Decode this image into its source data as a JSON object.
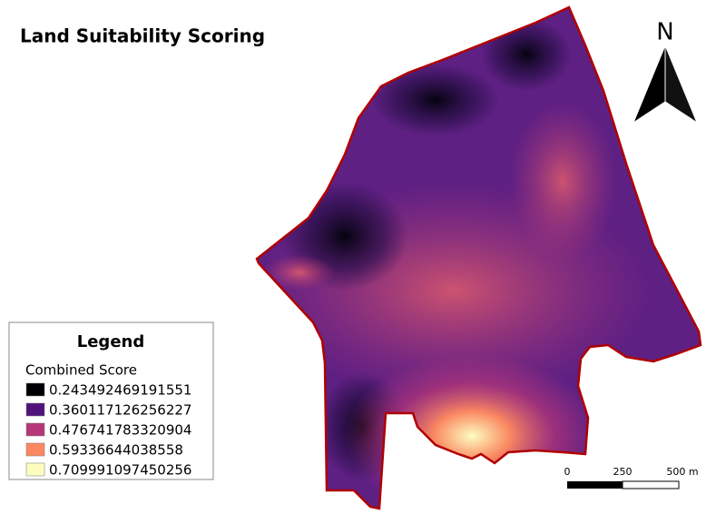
{
  "header": {
    "title": "Land Suitability Scoring"
  },
  "legend": {
    "title": "Legend",
    "subtitle": "Combined Score",
    "items": [
      {
        "label": "0.243492469191551",
        "color": "#000004"
      },
      {
        "label": "0.360117126256227",
        "color": "#51127c"
      },
      {
        "label": "0.476741783320904",
        "color": "#b63679"
      },
      {
        "label": "0.59336644038558",
        "color": "#fb8861"
      },
      {
        "label": "0.709991097450256",
        "color": "#fcfdbf"
      }
    ]
  },
  "north_arrow": {
    "label": "N"
  },
  "scale_bar": {
    "labels": [
      "0",
      "250",
      "500 m"
    ]
  }
}
